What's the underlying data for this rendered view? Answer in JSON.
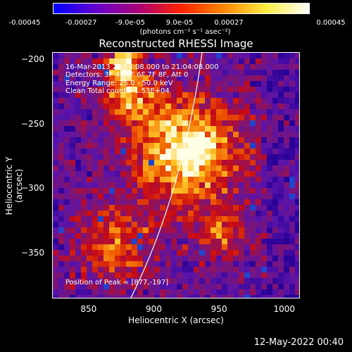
{
  "colorbar": {
    "ticks": [
      "-0.00045",
      "-0.00027",
      "-9.0e-05",
      "9.0e-05",
      "0.00027",
      "0.00045"
    ],
    "units": "(photons cm⁻² s⁻¹ asec⁻²)",
    "stops": [
      "#0000ff",
      "#6600cc",
      "#aa0077",
      "#ff2200",
      "#ff8800",
      "#ffee44",
      "#ffffff"
    ]
  },
  "chart_data": {
    "type": "heatmap",
    "title": "Reconstructed RHESSI Image",
    "xlabel": "Heliocentric X (arcsec)",
    "ylabel": "Heliocentric Y (arcsec)",
    "xlim": [
      822,
      1012
    ],
    "ylim": [
      -385,
      -194
    ],
    "xticks": [
      850,
      900,
      950,
      1000
    ],
    "yticks": [
      -200,
      -250,
      -300,
      -350
    ],
    "peak": [
      877,
      -197
    ],
    "annotations": [
      "16-Mar-2013 20:58:08.000 to 21:04:08.000",
      "Detectors: 3F 4F 5F 6F 7F 8F, Att 0",
      "Energy Range: 25.0 - 50.0 keV",
      "Clean     Total counts: 1.53E+04"
    ],
    "peak_label": "Position of Peak = [877,-197]"
  },
  "timestamp": "12-May-2022 00:40"
}
